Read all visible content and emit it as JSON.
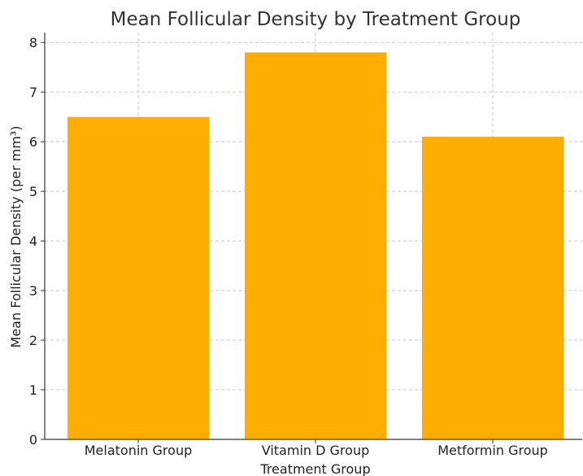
{
  "chart_data": {
    "type": "bar",
    "title": "Mean Follicular Density by Treatment Group",
    "xlabel": "Treatment Group",
    "ylabel": "Mean Follicular Density (per mm³)",
    "categories": [
      "Melatonin Group",
      "Vitamin D Group",
      "Metformin Group"
    ],
    "values": [
      6.5,
      7.8,
      6.1
    ],
    "ylim": [
      0,
      8.2
    ],
    "yticks": [
      "0",
      "1",
      "2",
      "3",
      "4",
      "5",
      "6",
      "7",
      "8"
    ],
    "grid": true,
    "bar_color": "#FFAE00"
  }
}
